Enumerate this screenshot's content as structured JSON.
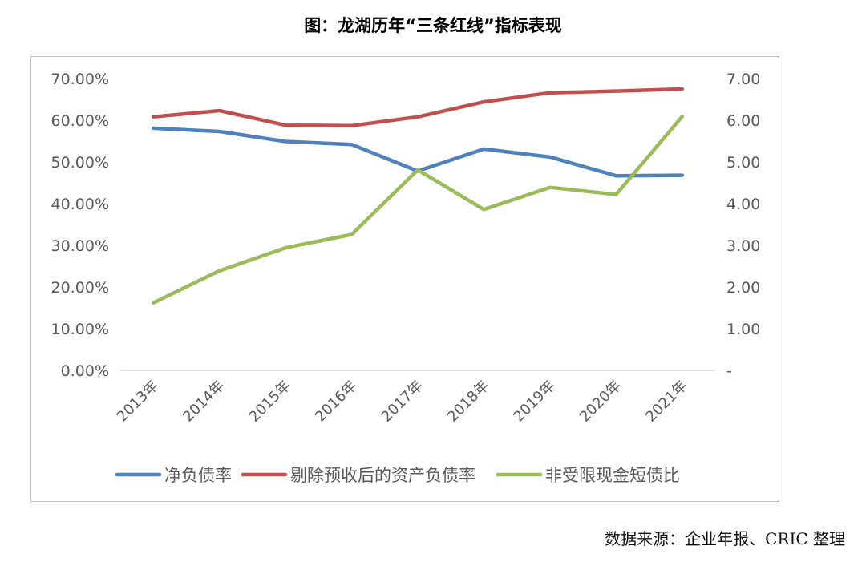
{
  "title": "图：龙湖历年“三条红线”指标表现",
  "source": "数据来源：企业年报、CRIC 整理",
  "chart_data": {
    "type": "line",
    "categories": [
      "2013年",
      "2014年",
      "2015年",
      "2016年",
      "2017年",
      "2018年",
      "2019年",
      "2020年",
      "2021年"
    ],
    "y_left": {
      "ticks": [
        "0.00%",
        "10.00%",
        "20.00%",
        "30.00%",
        "40.00%",
        "50.00%",
        "60.00%",
        "70.00%"
      ],
      "ylim": [
        0,
        70
      ]
    },
    "y_right": {
      "ticks": [
        "-",
        "1.00",
        "2.00",
        "3.00",
        "4.00",
        "5.00",
        "6.00",
        "7.00"
      ],
      "ylim": [
        0,
        7
      ]
    },
    "series": [
      {
        "name": "净负债率",
        "axis": "left",
        "color": "#4f81bd",
        "values": [
          58.1,
          57.3,
          54.9,
          54.2,
          47.8,
          53.1,
          51.2,
          46.7,
          46.8
        ]
      },
      {
        "name": "剔除预收后的资产负债率",
        "axis": "left",
        "color": "#c0504d",
        "values": [
          60.8,
          62.3,
          58.8,
          58.7,
          60.8,
          64.4,
          66.6,
          67.0,
          67.5
        ]
      },
      {
        "name": "非受限现金短债比",
        "axis": "right",
        "color": "#9bbb59",
        "values": [
          1.62,
          2.39,
          2.94,
          3.26,
          4.81,
          3.86,
          4.39,
          4.22,
          6.09
        ]
      }
    ],
    "grid": false,
    "legend_position": "bottom"
  }
}
